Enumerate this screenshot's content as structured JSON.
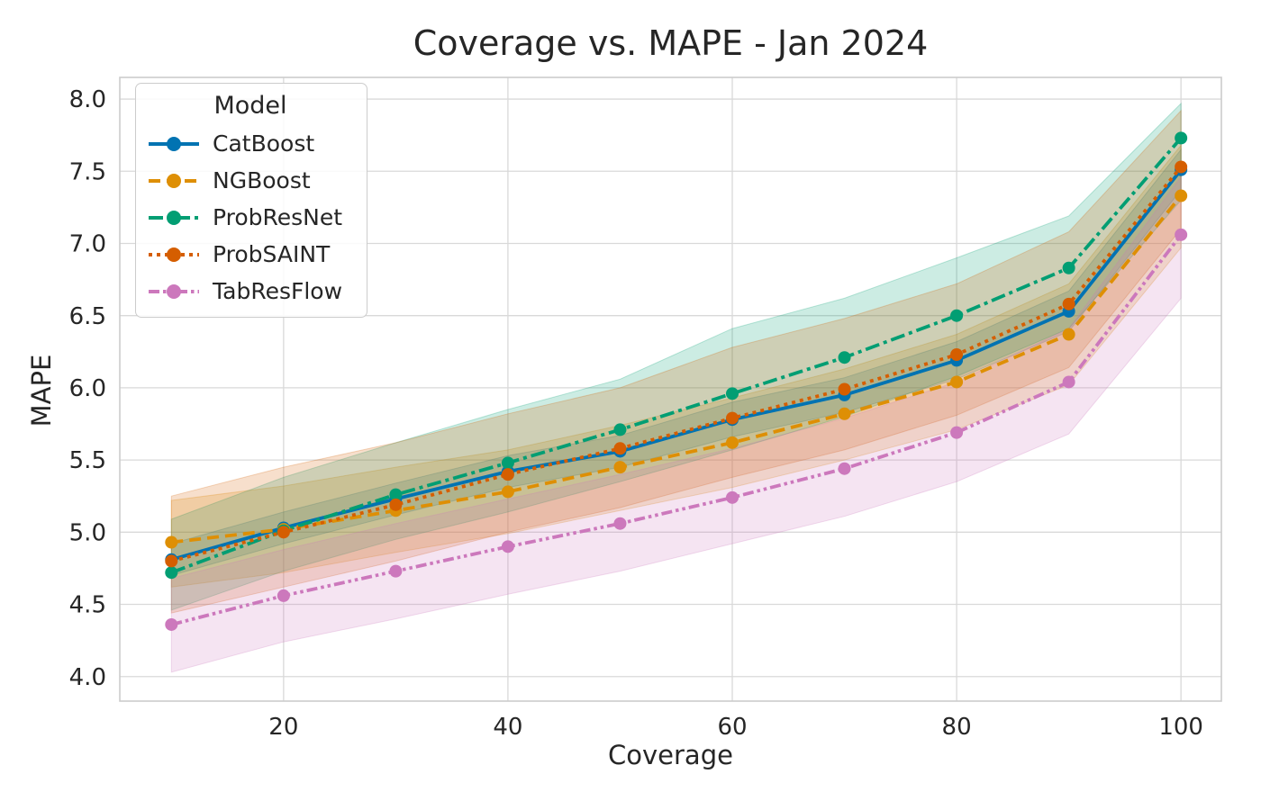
{
  "figure": {
    "title": "Coverage vs. MAPE - Jan 2024",
    "x_axis_label": "Coverage",
    "y_axis_label": "MAPE"
  },
  "legend": {
    "title": "Model",
    "entries": [
      "CatBoost",
      "NGBoost",
      "ProbResNet",
      "ProbSAINT",
      "TabResFlow"
    ]
  },
  "chart_data": {
    "type": "line",
    "title": "Coverage vs. MAPE - Jan 2024",
    "xlabel": "Coverage",
    "ylabel": "MAPE",
    "legend_title": "Model",
    "legend_position": "upper left",
    "grid": true,
    "x": [
      10,
      20,
      30,
      40,
      50,
      60,
      70,
      80,
      90,
      100
    ],
    "x_tick_labels": [
      "20",
      "40",
      "60",
      "80",
      "100"
    ],
    "y_tick_labels": [
      "4.0",
      "4.5",
      "5.0",
      "5.5",
      "6.0",
      "6.5",
      "7.0",
      "7.5",
      "8.0"
    ],
    "xlim": [
      5.4,
      103.6
    ],
    "ylim": [
      3.83,
      8.15
    ],
    "band_opacity": 0.2,
    "series": [
      {
        "name": "CatBoost",
        "color": "#0173b2",
        "linestyle": "solid",
        "dash": "none",
        "marker": "circle",
        "values": [
          4.81,
          5.03,
          5.23,
          5.42,
          5.56,
          5.78,
          5.95,
          6.19,
          6.53,
          7.51
        ],
        "band_lower": [
          4.7,
          4.92,
          5.12,
          5.31,
          5.45,
          5.66,
          5.83,
          6.06,
          6.39,
          7.37
        ],
        "band_upper": [
          4.92,
          5.14,
          5.34,
          5.53,
          5.67,
          5.9,
          6.07,
          6.32,
          6.67,
          7.65
        ]
      },
      {
        "name": "NGBoost",
        "color": "#de8f05",
        "linestyle": "dashed",
        "dash": "13 7",
        "marker": "circle",
        "values": [
          4.93,
          5.02,
          5.15,
          5.28,
          5.45,
          5.62,
          5.82,
          6.04,
          6.37,
          7.33
        ],
        "band_lower": [
          4.62,
          4.72,
          4.86,
          4.99,
          5.15,
          5.31,
          5.5,
          5.71,
          6.02,
          6.97
        ],
        "band_upper": [
          5.22,
          5.32,
          5.45,
          5.57,
          5.74,
          5.93,
          6.13,
          6.37,
          6.72,
          7.68
        ]
      },
      {
        "name": "ProbResNet",
        "color": "#029e73",
        "linestyle": "dashdot",
        "dash": "16 5 4 5",
        "marker": "circle",
        "values": [
          4.72,
          5.01,
          5.26,
          5.48,
          5.71,
          5.96,
          6.21,
          6.5,
          6.83,
          7.73
        ],
        "band_lower": [
          4.46,
          4.73,
          4.95,
          5.14,
          5.35,
          5.57,
          5.8,
          6.08,
          6.41,
          7.3
        ],
        "band_upper": [
          5.09,
          5.38,
          5.62,
          5.85,
          6.06,
          6.41,
          6.62,
          6.9,
          7.19,
          7.97
        ]
      },
      {
        "name": "ProbSAINT",
        "color": "#d55e00",
        "linestyle": "dotted",
        "dash": "4 5",
        "marker": "circle",
        "values": [
          4.8,
          5.0,
          5.19,
          5.4,
          5.58,
          5.79,
          5.99,
          6.23,
          6.58,
          7.53
        ],
        "band_lower": [
          4.44,
          4.62,
          4.8,
          5.0,
          5.17,
          5.38,
          5.57,
          5.81,
          6.14,
          7.1
        ],
        "band_upper": [
          5.25,
          5.45,
          5.62,
          5.82,
          6.0,
          6.28,
          6.48,
          6.72,
          7.08,
          7.92
        ]
      },
      {
        "name": "TabResFlow",
        "color": "#cc78bc",
        "linestyle": "dashdotdot",
        "dash": "12 4 3.5 4 3.5 4",
        "marker": "circle",
        "values": [
          4.36,
          4.56,
          4.73,
          4.9,
          5.06,
          5.24,
          5.44,
          5.69,
          6.04,
          7.06
        ],
        "band_lower": [
          4.03,
          4.24,
          4.4,
          4.57,
          4.73,
          4.92,
          5.11,
          5.35,
          5.68,
          6.62
        ],
        "band_upper": [
          4.68,
          4.88,
          5.06,
          5.23,
          5.4,
          5.58,
          5.79,
          6.04,
          6.41,
          7.46
        ]
      }
    ]
  },
  "style": {
    "grid_color": "#d9d9d9",
    "spine_color": "#cccccc",
    "text_color": "#262626",
    "line_width": 3.8,
    "marker_radius": 7
  }
}
